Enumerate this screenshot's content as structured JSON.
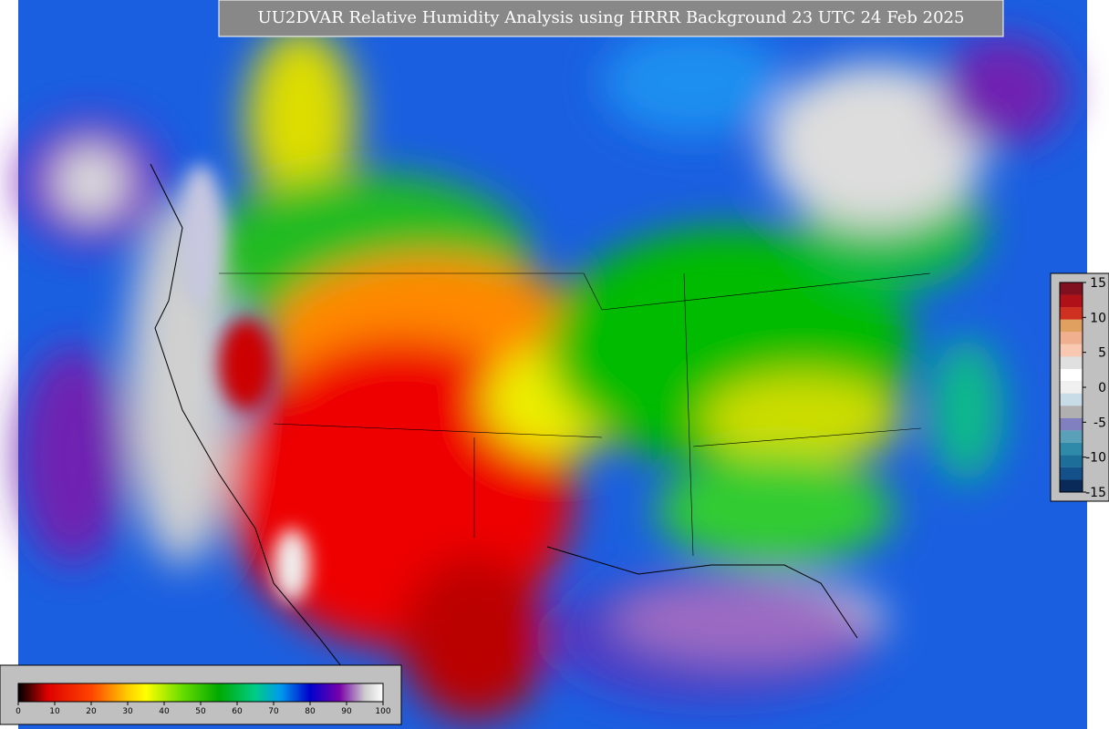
{
  "header": {
    "title": "UU2DVAR Relative Humidity Analysis using HRRR Background 23 UTC 24 Feb 2025"
  },
  "rh_colorbar": {
    "range": [
      0,
      100
    ],
    "ticks": [
      0,
      10,
      20,
      30,
      40,
      50,
      60,
      70,
      80,
      90,
      100
    ]
  },
  "diff_colorbar": {
    "range": [
      -15,
      15
    ],
    "ticks": [
      15,
      10,
      5,
      0,
      -5,
      -10,
      -15
    ]
  }
}
